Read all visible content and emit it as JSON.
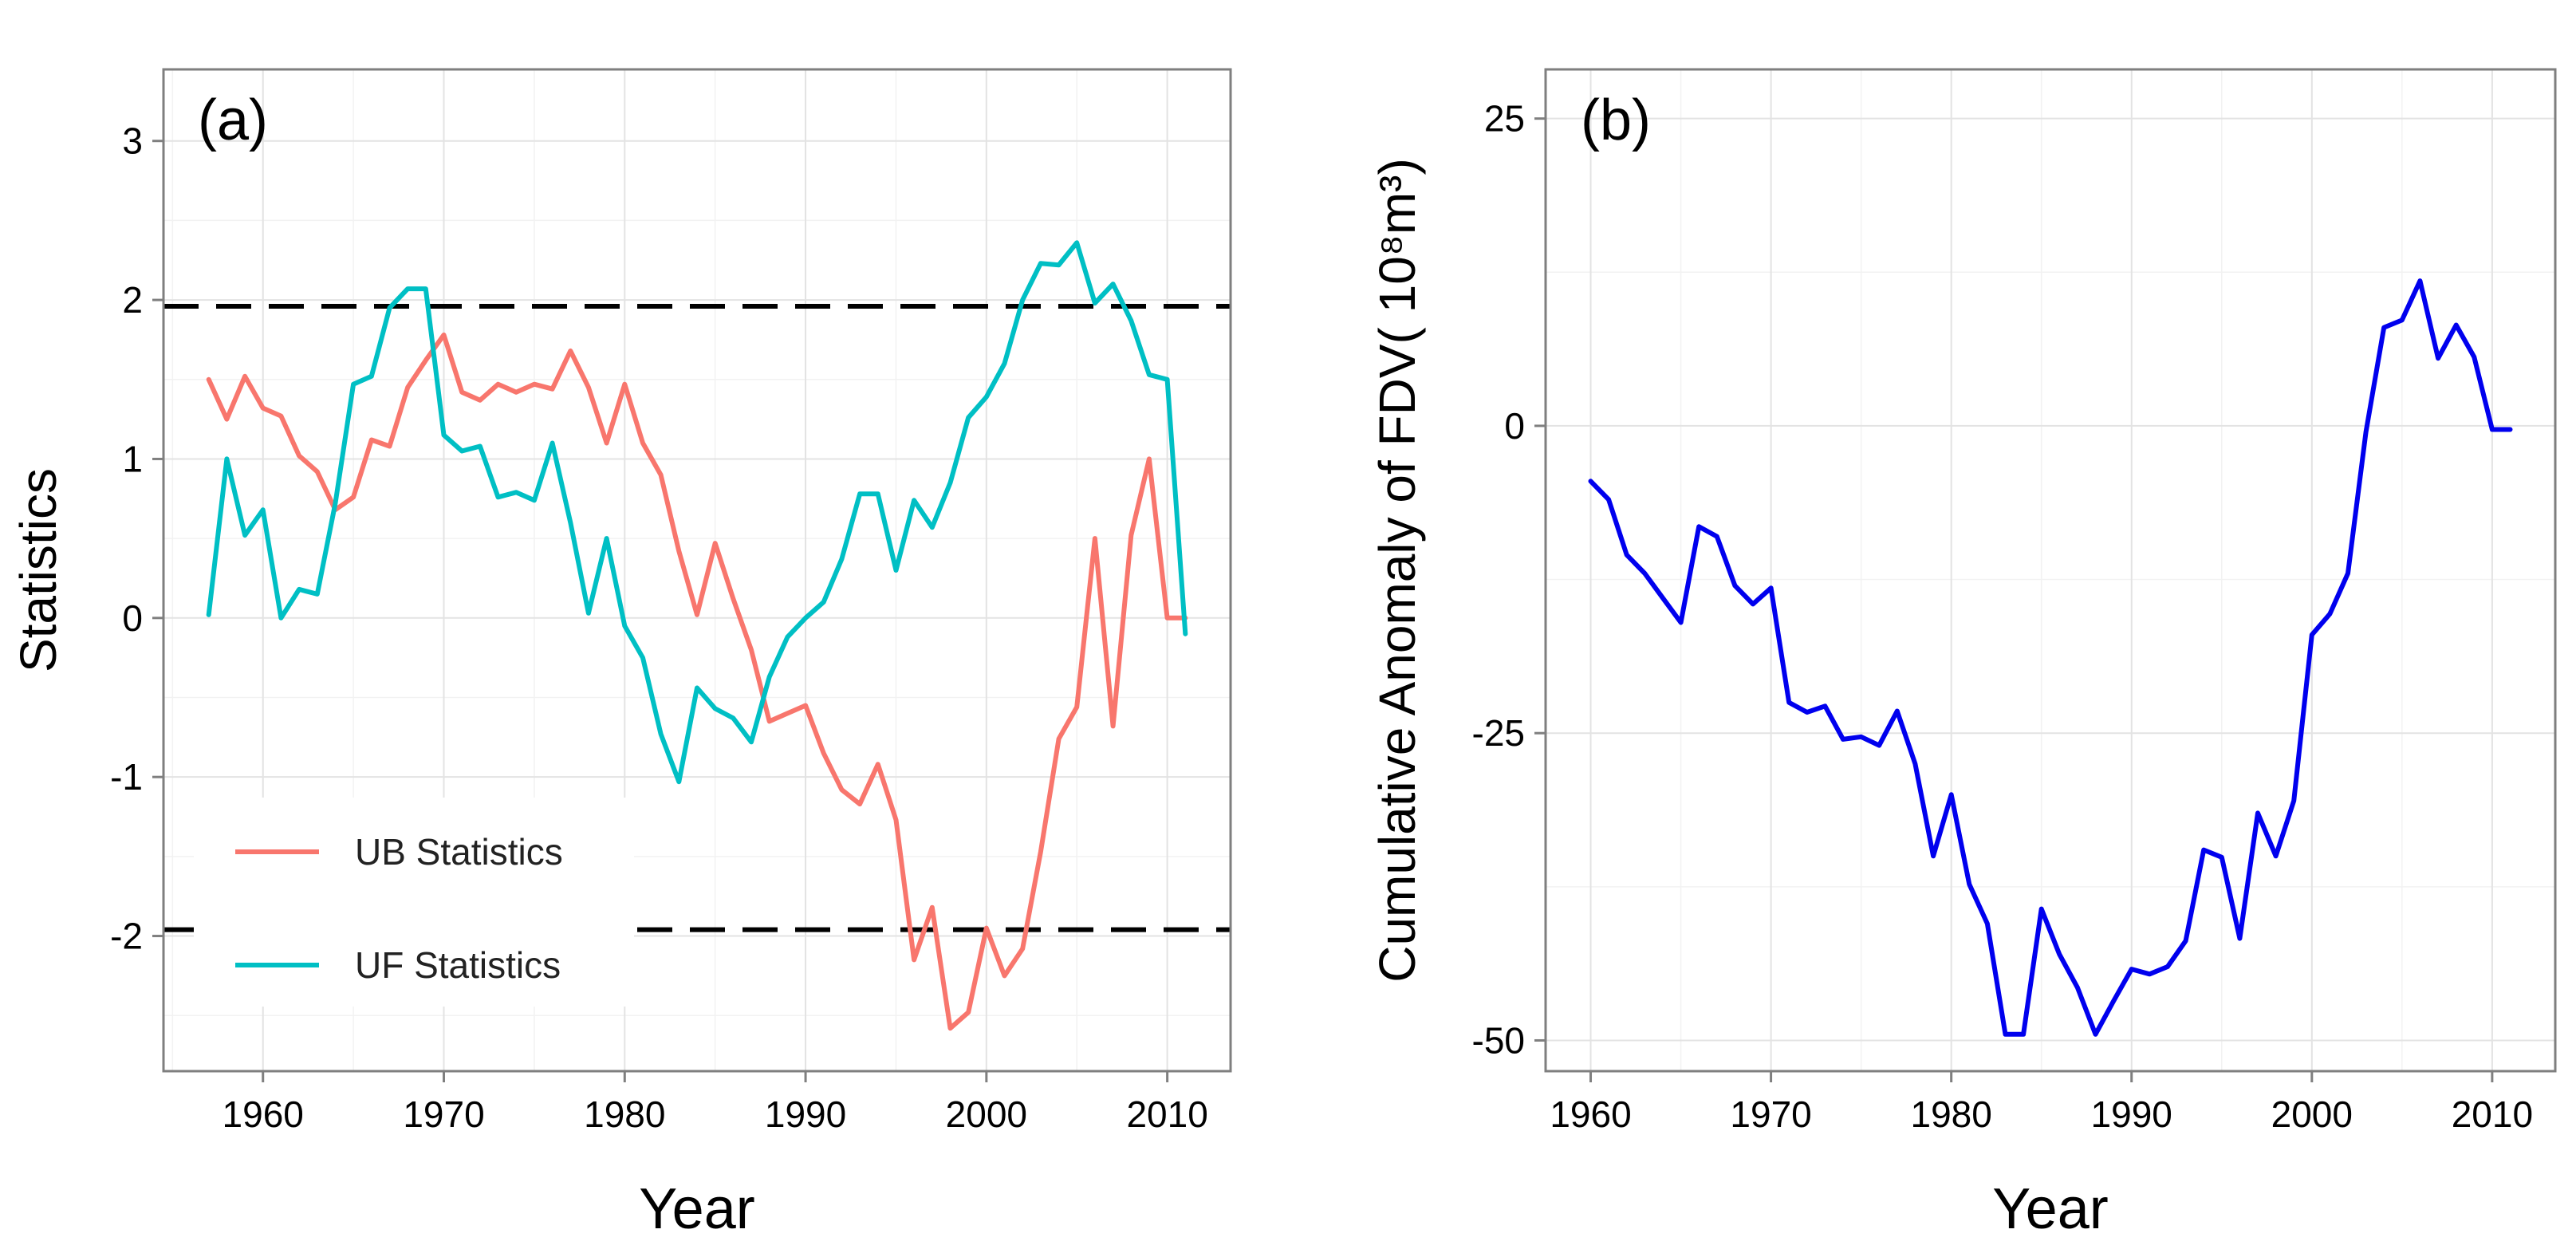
{
  "chart_data": [
    {
      "type": "line",
      "panel_label": "(a)",
      "title": "",
      "xlabel": "Year",
      "ylabel": "Statistics",
      "xlim": [
        1954.5,
        2013.5
      ],
      "ylim": [
        -2.85,
        3.45
      ],
      "xticks": [
        1960,
        1970,
        1980,
        1990,
        2000,
        2010
      ],
      "yticks": [
        -2,
        -1,
        0,
        1,
        2,
        3
      ],
      "grid": true,
      "legend_position": "bottom-left",
      "reference_lines": [
        {
          "name": "upper-confidence-line",
          "y": 1.96,
          "style": "dashed"
        },
        {
          "name": "lower-confidence-line",
          "y": -1.96,
          "style": "dashed"
        }
      ],
      "series": [
        {
          "name": "UB Statistics",
          "color": "#f8766d",
          "x": [
            1957,
            1958,
            1959,
            1960,
            1961,
            1962,
            1963,
            1964,
            1965,
            1966,
            1967,
            1968,
            1969,
            1970,
            1971,
            1972,
            1973,
            1974,
            1975,
            1976,
            1977,
            1978,
            1979,
            1980,
            1981,
            1982,
            1983,
            1984,
            1985,
            1986,
            1987,
            1988,
            1989,
            1990,
            1991,
            1992,
            1993,
            1994,
            1995,
            1996,
            1997,
            1998,
            1999,
            2000,
            2001,
            2002,
            2003,
            2004,
            2005,
            2006,
            2007,
            2008,
            2009,
            2010,
            2011
          ],
          "values": [
            1.5,
            1.25,
            1.52,
            1.32,
            1.27,
            1.02,
            0.92,
            0.68,
            0.76,
            1.12,
            1.08,
            1.45,
            1.62,
            1.78,
            1.42,
            1.37,
            1.47,
            1.42,
            1.47,
            1.44,
            1.68,
            1.45,
            1.1,
            1.47,
            1.1,
            0.9,
            0.42,
            0.02,
            0.47,
            0.12,
            -0.2,
            -0.65,
            -0.6,
            -0.55,
            -0.85,
            -1.08,
            -1.17,
            -0.92,
            -1.27,
            -2.15,
            -1.82,
            -2.58,
            -2.48,
            -1.95,
            -2.25,
            -2.08,
            -1.47,
            -0.76,
            -0.56,
            0.5,
            -0.68,
            0.52,
            1.0,
            0.0,
            0.0
          ]
        },
        {
          "name": "UF Statistics",
          "color": "#00bfc4",
          "x": [
            1957,
            1958,
            1959,
            1960,
            1961,
            1962,
            1963,
            1964,
            1965,
            1966,
            1967,
            1968,
            1969,
            1970,
            1971,
            1972,
            1973,
            1974,
            1975,
            1976,
            1977,
            1978,
            1979,
            1980,
            1981,
            1982,
            1983,
            1984,
            1985,
            1986,
            1987,
            1988,
            1989,
            1990,
            1991,
            1992,
            1993,
            1994,
            1995,
            1996,
            1997,
            1998,
            1999,
            2000,
            2001,
            2002,
            2003,
            2004,
            2005,
            2006,
            2007,
            2008,
            2009,
            2010,
            2011
          ],
          "values": [
            0.02,
            1.0,
            0.52,
            0.68,
            0.0,
            0.18,
            0.15,
            0.72,
            1.47,
            1.52,
            1.95,
            2.07,
            2.07,
            1.15,
            1.05,
            1.08,
            0.76,
            0.79,
            0.74,
            1.1,
            0.6,
            0.03,
            0.5,
            -0.05,
            -0.25,
            -0.73,
            -1.03,
            -0.44,
            -0.57,
            -0.63,
            -0.78,
            -0.37,
            -0.12,
            0.0,
            0.1,
            0.37,
            0.78,
            0.78,
            0.3,
            0.74,
            0.57,
            0.85,
            1.26,
            1.39,
            1.6,
            2.0,
            2.23,
            2.22,
            2.36,
            1.98,
            2.1,
            1.87,
            1.53,
            1.5,
            -0.1
          ]
        }
      ]
    },
    {
      "type": "line",
      "panel_label": "(b)",
      "title": "",
      "xlabel": "Year",
      "ylabel": "Cumulative Anomaly of FDV( 10⁸m³)",
      "xlim": [
        1957.5,
        2013.5
      ],
      "ylim": [
        -52.5,
        29
      ],
      "xticks": [
        1960,
        1970,
        1980,
        1990,
        2000,
        2010
      ],
      "yticks": [
        -50,
        -25,
        0,
        25
      ],
      "grid": true,
      "series": [
        {
          "name": "Cumulative Anomaly of FDV",
          "color": "#0000ee",
          "x": [
            1960,
            1961,
            1962,
            1963,
            1964,
            1965,
            1966,
            1967,
            1968,
            1969,
            1970,
            1971,
            1972,
            1973,
            1974,
            1975,
            1976,
            1977,
            1978,
            1979,
            1980,
            1981,
            1982,
            1983,
            1984,
            1985,
            1986,
            1987,
            1988,
            1989,
            1990,
            1991,
            1992,
            1993,
            1994,
            1995,
            1996,
            1997,
            1998,
            1999,
            2000,
            2001,
            2002,
            2003,
            2004,
            2005,
            2006,
            2007,
            2008,
            2009,
            2010,
            2011
          ],
          "values": [
            -4.5,
            -6,
            -10.5,
            -12,
            -14,
            -16,
            -8.2,
            -9,
            -13,
            -14.5,
            -13.2,
            -22.5,
            -23.3,
            -22.8,
            -25.5,
            -25.3,
            -26,
            -23.2,
            -27.5,
            -35,
            -30,
            -37.3,
            -40.5,
            -49.5,
            -49.5,
            -39.3,
            -43,
            -45.7,
            -49.5,
            -46.8,
            -44.2,
            -44.6,
            -44,
            -41.9,
            -34.5,
            -35.1,
            -41.7,
            -31.5,
            -35,
            -30.5,
            -17,
            -15.3,
            -12,
            -0.5,
            8,
            8.6,
            11.8,
            5.5,
            8.2,
            5.6,
            -0.3,
            -0.3
          ]
        }
      ]
    }
  ]
}
